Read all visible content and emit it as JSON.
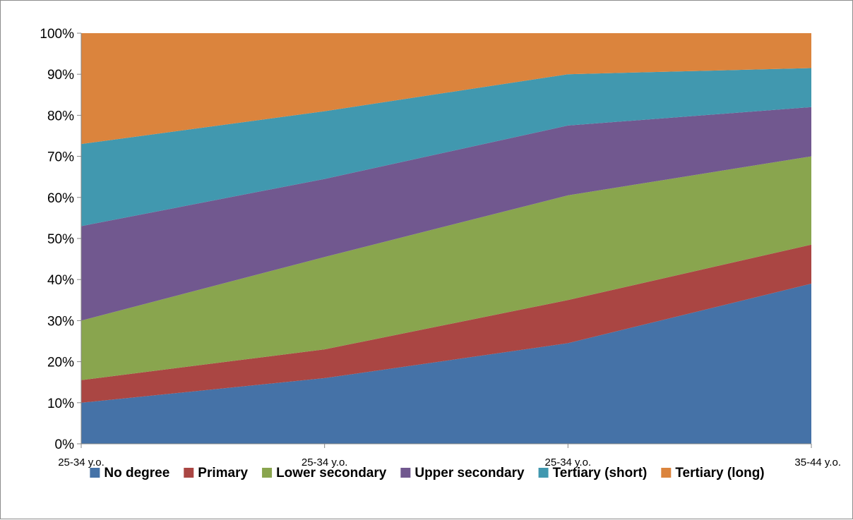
{
  "chart_data": {
    "type": "area",
    "stacked": true,
    "percent_stacked": true,
    "categories": [
      "25-34 y.o.",
      "25-34 y.o.",
      "25-34 y.o.",
      "35-44 y.o."
    ],
    "series": [
      {
        "name": "No degree",
        "color": "#4572A7",
        "values": [
          10,
          16,
          24.5,
          39
        ]
      },
      {
        "name": "Primary",
        "color": "#AA4643",
        "values": [
          5.5,
          7,
          10.5,
          9.5
        ]
      },
      {
        "name": "Lower secondary",
        "color": "#89A54E",
        "values": [
          14.5,
          22.5,
          25.5,
          21.5
        ]
      },
      {
        "name": "Upper secondary",
        "color": "#71588F",
        "values": [
          23,
          19,
          17,
          12
        ]
      },
      {
        "name": "Tertiary (short)",
        "color": "#4198AF",
        "values": [
          20,
          16.5,
          12.5,
          9.5
        ]
      },
      {
        "name": "Tertiary (long)",
        "color": "#DB843D",
        "values": [
          27,
          19,
          10,
          8.5
        ]
      }
    ],
    "y_ticks": [
      "0%",
      "10%",
      "20%",
      "30%",
      "40%",
      "50%",
      "60%",
      "70%",
      "80%",
      "90%",
      "100%"
    ],
    "ylim": [
      0,
      100
    ],
    "grid": false,
    "legend_position": "bottom"
  }
}
